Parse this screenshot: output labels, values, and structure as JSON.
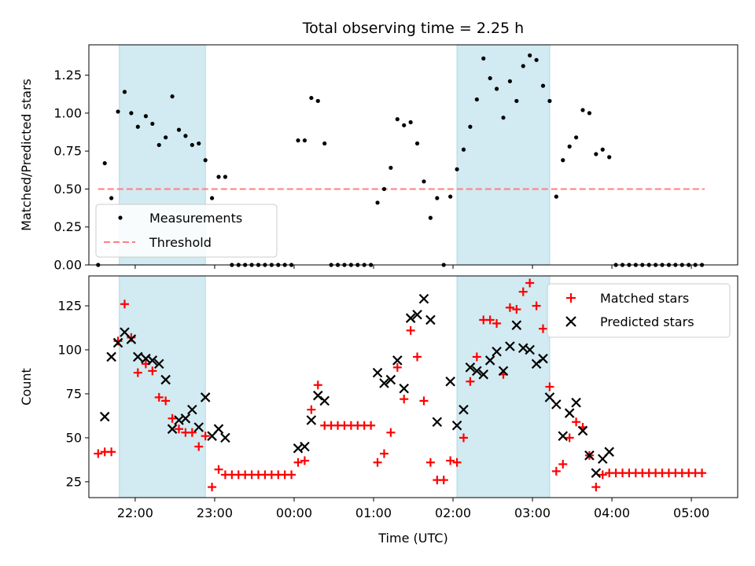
{
  "chart_data": [
    {
      "type": "scatter",
      "title": "Total observing time = 2.25 h",
      "xlabel": "",
      "ylabel": "Matched/Predicted stars",
      "xlim": [
        "21:25",
        "05:35"
      ],
      "ylim": [
        0,
        1.45
      ],
      "y_ticks": [
        "0.00",
        "0.25",
        "0.50",
        "0.75",
        "1.00",
        "1.25"
      ],
      "legend": {
        "location": "lower-left",
        "entries": [
          "Measurements",
          "Threshold"
        ]
      },
      "threshold": {
        "name": "Threshold",
        "value": 0.5,
        "x_start": "21:32",
        "x_end": "05:10",
        "color": "#ff7f7f"
      },
      "shaded_intervals": [
        [
          "21:48",
          "22:53"
        ],
        [
          "02:03",
          "03:13"
        ]
      ],
      "shade_color": "#add8e6",
      "series": [
        {
          "name": "Measurements",
          "color": "#000000",
          "points": [
            [
              "21:32",
              0.0
            ],
            [
              "21:37",
              0.67
            ],
            [
              "21:42",
              0.44
            ],
            [
              "21:47",
              1.01
            ],
            [
              "21:52",
              1.14
            ],
            [
              "21:57",
              1.0
            ],
            [
              "22:02",
              0.91
            ],
            [
              "22:08",
              0.98
            ],
            [
              "22:13",
              0.93
            ],
            [
              "22:18",
              0.79
            ],
            [
              "22:23",
              0.84
            ],
            [
              "22:28",
              1.11
            ],
            [
              "22:33",
              0.89
            ],
            [
              "22:38",
              0.85
            ],
            [
              "22:43",
              0.79
            ],
            [
              "22:48",
              0.8
            ],
            [
              "22:53",
              0.69
            ],
            [
              "22:58",
              0.44
            ],
            [
              "23:03",
              0.58
            ],
            [
              "23:08",
              0.58
            ],
            [
              "23:13",
              0.0
            ],
            [
              "23:18",
              0.0
            ],
            [
              "23:23",
              0.0
            ],
            [
              "23:28",
              0.0
            ],
            [
              "23:33",
              0.0
            ],
            [
              "23:38",
              0.0
            ],
            [
              "23:43",
              0.0
            ],
            [
              "23:48",
              0.0
            ],
            [
              "23:53",
              0.0
            ],
            [
              "23:58",
              0.0
            ],
            [
              "00:03",
              0.82
            ],
            [
              "00:08",
              0.82
            ],
            [
              "00:13",
              1.1
            ],
            [
              "00:18",
              1.08
            ],
            [
              "00:23",
              0.8
            ],
            [
              "00:28",
              0.0
            ],
            [
              "00:33",
              0.0
            ],
            [
              "00:38",
              0.0
            ],
            [
              "00:43",
              0.0
            ],
            [
              "00:48",
              0.0
            ],
            [
              "00:53",
              0.0
            ],
            [
              "00:58",
              0.0
            ],
            [
              "01:03",
              0.41
            ],
            [
              "01:08",
              0.5
            ],
            [
              "01:13",
              0.64
            ],
            [
              "01:18",
              0.96
            ],
            [
              "01:23",
              0.92
            ],
            [
              "01:28",
              0.94
            ],
            [
              "01:33",
              0.8
            ],
            [
              "01:38",
              0.55
            ],
            [
              "01:43",
              0.31
            ],
            [
              "01:48",
              0.44
            ],
            [
              "01:53",
              0.0
            ],
            [
              "01:58",
              0.45
            ],
            [
              "02:03",
              0.63
            ],
            [
              "02:08",
              0.76
            ],
            [
              "02:13",
              0.91
            ],
            [
              "02:18",
              1.09
            ],
            [
              "02:23",
              1.36
            ],
            [
              "02:28",
              1.23
            ],
            [
              "02:33",
              1.16
            ],
            [
              "02:38",
              0.97
            ],
            [
              "02:43",
              1.21
            ],
            [
              "02:48",
              1.08
            ],
            [
              "02:53",
              1.31
            ],
            [
              "02:58",
              1.38
            ],
            [
              "03:03",
              1.35
            ],
            [
              "03:08",
              1.18
            ],
            [
              "03:13",
              1.08
            ],
            [
              "03:18",
              0.45
            ],
            [
              "03:23",
              0.69
            ],
            [
              "03:28",
              0.78
            ],
            [
              "03:33",
              0.84
            ],
            [
              "03:38",
              1.02
            ],
            [
              "03:43",
              1.0
            ],
            [
              "03:48",
              0.73
            ],
            [
              "03:53",
              0.76
            ],
            [
              "03:58",
              0.71
            ],
            [
              "04:03",
              0.0
            ],
            [
              "04:08",
              0.0
            ],
            [
              "04:13",
              0.0
            ],
            [
              "04:18",
              0.0
            ],
            [
              "04:23",
              0.0
            ],
            [
              "04:28",
              0.0
            ],
            [
              "04:33",
              0.0
            ],
            [
              "04:38",
              0.0
            ],
            [
              "04:43",
              0.0
            ],
            [
              "04:48",
              0.0
            ],
            [
              "04:53",
              0.0
            ],
            [
              "04:58",
              0.0
            ],
            [
              "05:03",
              0.0
            ],
            [
              "05:08",
              0.0
            ]
          ]
        }
      ]
    },
    {
      "type": "scatter",
      "title": "",
      "xlabel": "Time (UTC)",
      "ylabel": "Count",
      "xlim": [
        "21:25",
        "05:35"
      ],
      "ylim": [
        16,
        142
      ],
      "x_ticks": [
        "22:00",
        "23:00",
        "00:00",
        "01:00",
        "02:00",
        "03:00",
        "04:00",
        "05:00"
      ],
      "y_ticks": [
        "25",
        "50",
        "75",
        "100",
        "125"
      ],
      "legend": {
        "location": "upper-right",
        "entries": [
          "Matched stars",
          "Predicted stars"
        ]
      },
      "shaded_intervals": [
        [
          "21:48",
          "22:53"
        ],
        [
          "02:03",
          "03:13"
        ]
      ],
      "shade_color": "#add8e6",
      "series": [
        {
          "name": "Matched stars",
          "marker": "+",
          "color": "#ff0000",
          "points": [
            [
              "21:32",
              41
            ],
            [
              "21:37",
              42
            ],
            [
              "21:42",
              42
            ],
            [
              "21:47",
              105
            ],
            [
              "21:52",
              126
            ],
            [
              "21:57",
              107
            ],
            [
              "22:02",
              87
            ],
            [
              "22:08",
              92
            ],
            [
              "22:13",
              88
            ],
            [
              "22:18",
              73
            ],
            [
              "22:23",
              71
            ],
            [
              "22:28",
              61
            ],
            [
              "22:33",
              55
            ],
            [
              "22:38",
              53
            ],
            [
              "22:43",
              53
            ],
            [
              "22:48",
              45
            ],
            [
              "22:53",
              51
            ],
            [
              "22:58",
              22
            ],
            [
              "23:03",
              32
            ],
            [
              "23:08",
              29
            ],
            [
              "23:13",
              29
            ],
            [
              "23:18",
              29
            ],
            [
              "23:23",
              29
            ],
            [
              "23:28",
              29
            ],
            [
              "23:33",
              29
            ],
            [
              "23:38",
              29
            ],
            [
              "23:43",
              29
            ],
            [
              "23:48",
              29
            ],
            [
              "23:53",
              29
            ],
            [
              "23:58",
              29
            ],
            [
              "00:03",
              36
            ],
            [
              "00:08",
              37
            ],
            [
              "00:13",
              66
            ],
            [
              "00:18",
              80
            ],
            [
              "00:23",
              57
            ],
            [
              "00:28",
              57
            ],
            [
              "00:33",
              57
            ],
            [
              "00:38",
              57
            ],
            [
              "00:43",
              57
            ],
            [
              "00:48",
              57
            ],
            [
              "00:53",
              57
            ],
            [
              "00:58",
              57
            ],
            [
              "01:03",
              36
            ],
            [
              "01:08",
              41
            ],
            [
              "01:13",
              53
            ],
            [
              "01:18",
              90
            ],
            [
              "01:23",
              72
            ],
            [
              "01:28",
              111
            ],
            [
              "01:33",
              96
            ],
            [
              "01:38",
              71
            ],
            [
              "01:43",
              36
            ],
            [
              "01:48",
              26
            ],
            [
              "01:53",
              26
            ],
            [
              "01:58",
              37
            ],
            [
              "02:03",
              36
            ],
            [
              "02:08",
              50
            ],
            [
              "02:13",
              82
            ],
            [
              "02:18",
              96
            ],
            [
              "02:23",
              117
            ],
            [
              "02:28",
              117
            ],
            [
              "02:33",
              115
            ],
            [
              "02:38",
              86
            ],
            [
              "02:43",
              124
            ],
            [
              "02:48",
              123
            ],
            [
              "02:53",
              133
            ],
            [
              "02:58",
              138
            ],
            [
              "03:03",
              125
            ],
            [
              "03:08",
              112
            ],
            [
              "03:13",
              79
            ],
            [
              "03:18",
              31
            ],
            [
              "03:23",
              35
            ],
            [
              "03:28",
              50
            ],
            [
              "03:33",
              59
            ],
            [
              "03:38",
              56
            ],
            [
              "03:43",
              40
            ],
            [
              "03:48",
              22
            ],
            [
              "03:53",
              29
            ],
            [
              "03:58",
              30
            ],
            [
              "04:03",
              30
            ],
            [
              "04:08",
              30
            ],
            [
              "04:13",
              30
            ],
            [
              "04:18",
              30
            ],
            [
              "04:23",
              30
            ],
            [
              "04:28",
              30
            ],
            [
              "04:33",
              30
            ],
            [
              "04:38",
              30
            ],
            [
              "04:43",
              30
            ],
            [
              "04:48",
              30
            ],
            [
              "04:53",
              30
            ],
            [
              "04:58",
              30
            ],
            [
              "05:03",
              30
            ],
            [
              "05:08",
              30
            ]
          ]
        },
        {
          "name": "Predicted stars",
          "marker": "x",
          "color": "#000000",
          "points": [
            [
              "21:37",
              62
            ],
            [
              "21:42",
              96
            ],
            [
              "21:47",
              104
            ],
            [
              "21:52",
              110
            ],
            [
              "21:57",
              106
            ],
            [
              "22:02",
              96
            ],
            [
              "22:08",
              95
            ],
            [
              "22:13",
              94
            ],
            [
              "22:18",
              92
            ],
            [
              "22:23",
              83
            ],
            [
              "22:28",
              55
            ],
            [
              "22:33",
              60
            ],
            [
              "22:38",
              61
            ],
            [
              "22:43",
              66
            ],
            [
              "22:48",
              56
            ],
            [
              "22:53",
              73
            ],
            [
              "22:58",
              51
            ],
            [
              "23:03",
              55
            ],
            [
              "23:08",
              50
            ],
            [
              "00:03",
              44
            ],
            [
              "00:08",
              45
            ],
            [
              "00:13",
              60
            ],
            [
              "00:18",
              74
            ],
            [
              "00:23",
              71
            ],
            [
              "01:03",
              87
            ],
            [
              "01:08",
              81
            ],
            [
              "01:13",
              83
            ],
            [
              "01:18",
              94
            ],
            [
              "01:23",
              78
            ],
            [
              "01:28",
              118
            ],
            [
              "01:33",
              120
            ],
            [
              "01:38",
              129
            ],
            [
              "01:43",
              117
            ],
            [
              "01:48",
              59
            ],
            [
              "01:58",
              82
            ],
            [
              "02:03",
              57
            ],
            [
              "02:08",
              66
            ],
            [
              "02:13",
              90
            ],
            [
              "02:18",
              88
            ],
            [
              "02:23",
              86
            ],
            [
              "02:28",
              94
            ],
            [
              "02:33",
              99
            ],
            [
              "02:38",
              88
            ],
            [
              "02:43",
              102
            ],
            [
              "02:48",
              114
            ],
            [
              "02:53",
              101
            ],
            [
              "02:58",
              100
            ],
            [
              "03:03",
              92
            ],
            [
              "03:08",
              95
            ],
            [
              "03:13",
              73
            ],
            [
              "03:18",
              69
            ],
            [
              "03:23",
              51
            ],
            [
              "03:28",
              64
            ],
            [
              "03:33",
              70
            ],
            [
              "03:38",
              54
            ],
            [
              "03:43",
              40
            ],
            [
              "03:48",
              30
            ],
            [
              "03:53",
              38
            ],
            [
              "03:58",
              42
            ]
          ]
        }
      ]
    }
  ]
}
